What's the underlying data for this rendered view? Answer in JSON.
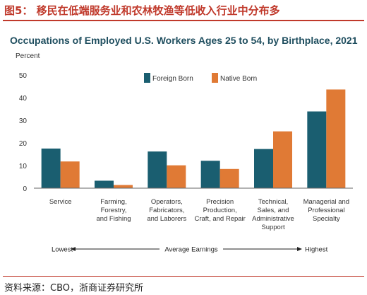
{
  "figure_title": "图5： 移民在低端服务业和农林牧渔等低收入行业中分布多",
  "source": "资料来源：CBO，浙商证券研究所",
  "chart_data": {
    "type": "bar",
    "title": "Occupations of Employed U.S. Workers Ages 25 to 54, by Birthplace, 2021",
    "ylabel": "Percent",
    "ylim": [
      0,
      50
    ],
    "yticks": [
      0,
      10,
      20,
      30,
      40,
      50
    ],
    "grid": false,
    "legend_position": "top-center",
    "categories": [
      [
        "Service"
      ],
      [
        "Farming,",
        "Forestry,",
        "and Fishing"
      ],
      [
        "Operators,",
        "Fabricators,",
        "and Laborers"
      ],
      [
        "Precision",
        "Production,",
        "Craft, and Repair"
      ],
      [
        "Technical,",
        "Sales, and",
        "Administrative",
        "Support"
      ],
      [
        "Managerial and",
        "Professional",
        "Specialty"
      ]
    ],
    "series": [
      {
        "name": "Foreign Born",
        "color": "#1a5e70",
        "values": [
          17.5,
          3.3,
          16.2,
          12.1,
          17.3,
          33.9
        ]
      },
      {
        "name": "Native Born",
        "color": "#e07a35",
        "values": [
          11.8,
          1.4,
          10.1,
          8.5,
          25.1,
          43.6
        ]
      }
    ],
    "earnings_axis": {
      "low": "Lowest",
      "mid": "Average Earnings",
      "high": "Highest"
    }
  }
}
